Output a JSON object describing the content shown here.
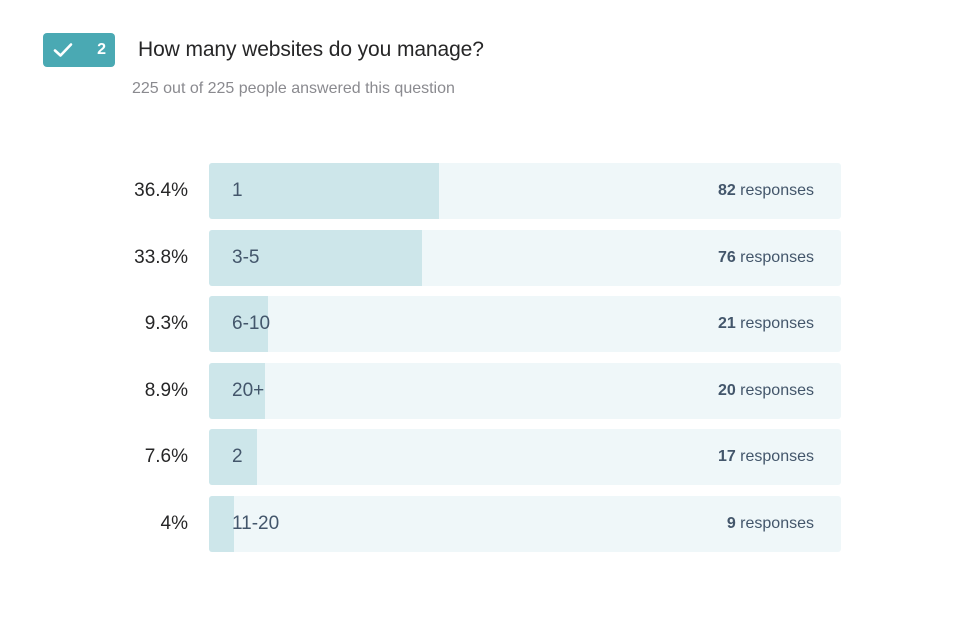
{
  "question": {
    "number": "2",
    "title": "How many websites do you manage?",
    "subtitle": "225 out of 225 people answered this question"
  },
  "colors": {
    "badge": "#4aa9b3",
    "fill": "#cde6ea",
    "track": "#eff7f9"
  },
  "icons": {
    "badge_icon": "check-icon"
  },
  "chart_data": {
    "type": "bar",
    "orientation": "horizontal",
    "categories": [
      "1",
      "3-5",
      "6-10",
      "20+",
      "2",
      "11-20"
    ],
    "values": [
      82,
      76,
      21,
      20,
      17,
      9
    ],
    "percent_labels": [
      "36.4%",
      "33.8%",
      "9.3%",
      "8.9%",
      "7.6%",
      "4%"
    ],
    "count_suffix": "responses",
    "xlim": [
      0,
      225
    ]
  }
}
